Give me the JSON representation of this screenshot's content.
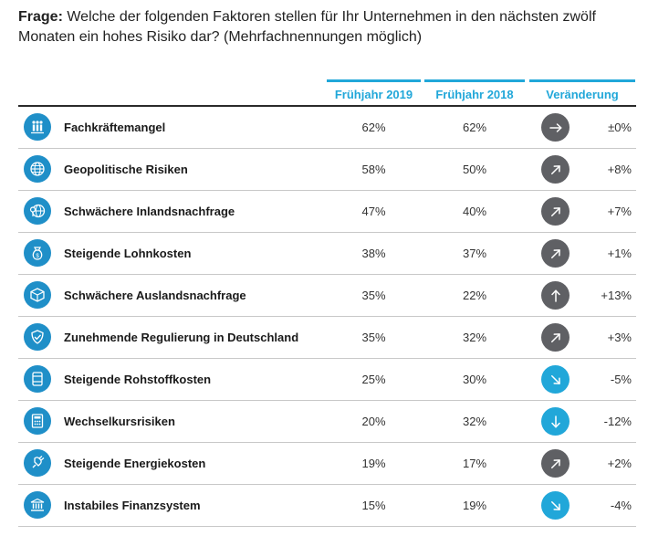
{
  "question": {
    "label": "Frage:",
    "text": "Welche der folgenden Faktoren stellen für Ihr Unternehmen in den nächsten zwölf Monaten ein hohes Risiko dar? (Mehrfachnennungen möglich)"
  },
  "header": {
    "col_2019": "Frühjahr 2019",
    "col_2018": "Frühjahr 2018",
    "col_change": "Veränderung"
  },
  "colors": {
    "accent": "#21a7d9",
    "icon_bg": "#1f8fc8",
    "arrow_gray": "#5f6064",
    "arrow_blue": "#21a7d9"
  },
  "rows": [
    {
      "label": "Fachkräftemangel",
      "icon": "people-icon",
      "v2019": "62%",
      "v2018": "62%",
      "arrow": "right",
      "arrow_color": "gray",
      "change": "±0%"
    },
    {
      "label": "Geopolitische Risiken",
      "icon": "globe-icon",
      "v2019": "58%",
      "v2018": "50%",
      "arrow": "up-right",
      "arrow_color": "gray",
      "change": "+8%"
    },
    {
      "label": "Schwächere Inlandsnachfrage",
      "icon": "globe-pin-icon",
      "v2019": "47%",
      "v2018": "40%",
      "arrow": "up-right",
      "arrow_color": "gray",
      "change": "+7%"
    },
    {
      "label": "Steigende Lohnkosten",
      "icon": "money-bag-icon",
      "v2019": "38%",
      "v2018": "37%",
      "arrow": "up-right",
      "arrow_color": "gray",
      "change": "+1%"
    },
    {
      "label": "Schwächere Auslandsnachfrage",
      "icon": "package-icon",
      "v2019": "35%",
      "v2018": "22%",
      "arrow": "up",
      "arrow_color": "gray",
      "change": "+13%"
    },
    {
      "label": "Zunehmende Regulierung in Deutschland",
      "icon": "shield-check-icon",
      "v2019": "35%",
      "v2018": "32%",
      "arrow": "up-right",
      "arrow_color": "gray",
      "change": "+3%"
    },
    {
      "label": "Steigende Rohstoffkosten",
      "icon": "barrel-icon",
      "v2019": "25%",
      "v2018": "30%",
      "arrow": "down-right",
      "arrow_color": "blue",
      "change": "-5%"
    },
    {
      "label": "Wechselkursrisiken",
      "icon": "calculator-icon",
      "v2019": "20%",
      "v2018": "32%",
      "arrow": "down",
      "arrow_color": "blue",
      "change": "-12%"
    },
    {
      "label": "Steigende Energiekosten",
      "icon": "plug-icon",
      "v2019": "19%",
      "v2018": "17%",
      "arrow": "up-right",
      "arrow_color": "gray",
      "change": "+2%"
    },
    {
      "label": "Instabiles Finanzsystem",
      "icon": "bank-icon",
      "v2019": "15%",
      "v2018": "19%",
      "arrow": "down-right",
      "arrow_color": "blue",
      "change": "-4%"
    }
  ]
}
